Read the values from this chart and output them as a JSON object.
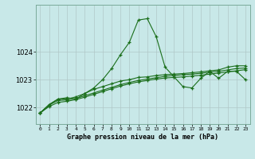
{
  "title": "Graphe pression niveau de la mer (hPa)",
  "background_color": "#c8e8e8",
  "grid_color": "#b0c8c8",
  "line_color": "#1a6e1a",
  "xlim": [
    -0.5,
    23.5
  ],
  "ylim": [
    1021.4,
    1025.7
  ],
  "yticks": [
    1022,
    1023,
    1024
  ],
  "xtick_labels": [
    "0",
    "1",
    "2",
    "3",
    "4",
    "5",
    "6",
    "7",
    "8",
    "9",
    "10",
    "11",
    "12",
    "13",
    "14",
    "15",
    "16",
    "17",
    "18",
    "19",
    "20",
    "21",
    "22",
    "23"
  ],
  "series1": [
    1021.8,
    1022.1,
    1022.3,
    1022.35,
    1022.3,
    1022.5,
    1022.7,
    1023.0,
    1023.4,
    1023.9,
    1024.35,
    1025.15,
    1025.2,
    1024.55,
    1023.45,
    1023.1,
    1022.75,
    1022.7,
    1023.05,
    1023.3,
    1023.05,
    1023.3,
    1023.3,
    1023.0
  ],
  "series2": [
    1021.8,
    1022.1,
    1022.3,
    1022.3,
    1022.38,
    1022.5,
    1022.65,
    1022.75,
    1022.85,
    1022.95,
    1023.0,
    1023.08,
    1023.1,
    1023.15,
    1023.18,
    1023.2,
    1023.22,
    1023.25,
    1023.28,
    1023.32,
    1023.35,
    1023.45,
    1023.5,
    1023.5
  ],
  "series3": [
    1021.8,
    1022.08,
    1022.25,
    1022.27,
    1022.32,
    1022.42,
    1022.52,
    1022.62,
    1022.72,
    1022.82,
    1022.9,
    1022.97,
    1023.02,
    1023.07,
    1023.12,
    1023.15,
    1023.18,
    1023.2,
    1023.23,
    1023.27,
    1023.3,
    1023.35,
    1023.4,
    1023.42
  ],
  "series4": [
    1021.8,
    1022.03,
    1022.18,
    1022.22,
    1022.28,
    1022.37,
    1022.47,
    1022.57,
    1022.67,
    1022.77,
    1022.85,
    1022.92,
    1022.97,
    1023.02,
    1023.06,
    1023.08,
    1023.1,
    1023.13,
    1023.16,
    1023.2,
    1023.24,
    1023.28,
    1023.32,
    1023.36
  ]
}
